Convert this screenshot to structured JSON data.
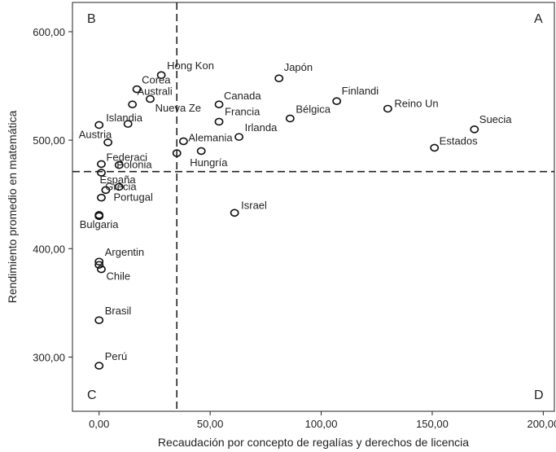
{
  "chart_data": {
    "type": "scatter",
    "xlabel": "Recaudación por concepto de regalías y derechos de licencia",
    "ylabel": "Rendimiento promedio en matemática",
    "xlim": [
      -12,
      205
    ],
    "ylim": [
      250,
      627
    ],
    "xticks": [
      0,
      50,
      100,
      150,
      200
    ],
    "yticks": [
      300,
      400,
      500,
      600
    ],
    "xtick_labels": [
      "0,00",
      "50,00",
      "100,00",
      "150,00",
      "200,00"
    ],
    "ytick_labels": [
      "300,00",
      "400,00",
      "500,00",
      "600,00"
    ],
    "grid": false,
    "reference_lines": {
      "x": 35,
      "y": 471
    },
    "quadrant_labels": {
      "top_left": "B",
      "top_right": "A",
      "bottom_left": "C",
      "bottom_right": "D"
    },
    "points": [
      {
        "label": "Hong Kon",
        "x": 28,
        "y": 560
      },
      {
        "label": "Corea",
        "x": 17,
        "y": 547
      },
      {
        "label": "Australi",
        "x": 23,
        "y": 538
      },
      {
        "label": "Japón",
        "x": 81,
        "y": 557
      },
      {
        "label": "Canada",
        "x": 54,
        "y": 533
      },
      {
        "label": "Finlandi",
        "x": 107,
        "y": 536
      },
      {
        "label": "Reino Un",
        "x": 130,
        "y": 529
      },
      {
        "label": "Nueva Ze",
        "x": 15,
        "y": 533
      },
      {
        "label": "Francia",
        "x": 54,
        "y": 517
      },
      {
        "label": "Bélgica",
        "x": 86,
        "y": 520
      },
      {
        "label": "Islandia",
        "x": 13,
        "y": 515
      },
      {
        "label": "Suecia",
        "x": 169,
        "y": 510
      },
      {
        "label": "Austria",
        "x": 0,
        "y": 514
      },
      {
        "label": "Irlanda",
        "x": 63,
        "y": 503
      },
      {
        "label": "Estados",
        "x": 151,
        "y": 493
      },
      {
        "label": "Alemania",
        "x": 38,
        "y": 499
      },
      {
        "label": "",
        "x": 4,
        "y": 498
      },
      {
        "label": "",
        "x": 46,
        "y": 490
      },
      {
        "label": "Hungría",
        "x": 35,
        "y": 488
      },
      {
        "label": "Federaci",
        "x": 1,
        "y": 478
      },
      {
        "label": "Polonia",
        "x": 9,
        "y": 477
      },
      {
        "label": "España",
        "x": 1,
        "y": 470
      },
      {
        "label": "Grecia",
        "x": 9,
        "y": 457
      },
      {
        "label": "",
        "x": 3,
        "y": 454
      },
      {
        "label": "Portugal",
        "x": 1,
        "y": 447
      },
      {
        "label": "Israel",
        "x": 61,
        "y": 433
      },
      {
        "label": "Bulgaria",
        "x": 0,
        "y": 431
      },
      {
        "label": "",
        "x": 0,
        "y": 430
      },
      {
        "label": "Argentin",
        "x": 0,
        "y": 388
      },
      {
        "label": "",
        "x": 0,
        "y": 385
      },
      {
        "label": "Chile",
        "x": 1,
        "y": 381
      },
      {
        "label": "Brasil",
        "x": 0,
        "y": 334
      },
      {
        "label": "Perú",
        "x": 0,
        "y": 292
      }
    ]
  }
}
